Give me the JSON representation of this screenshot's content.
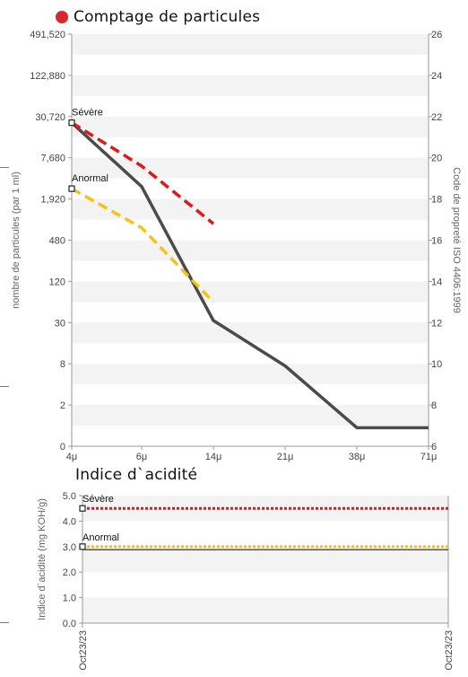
{
  "colors": {
    "band_grey": "#f3f3f3",
    "measured": "#4b4b4b",
    "severe": "#e01818",
    "abnormal": "#f5c21b",
    "dot": "#d9272e"
  },
  "panel1": {
    "title": "Comptage de particules",
    "dot_icon": "red-hexagon-icon"
  },
  "panel2": {
    "title": "Indice d`acidité"
  },
  "chart_data": [
    {
      "type": "line",
      "title": "Comptage de particules",
      "xlabel": "",
      "ylabel": "nombre de particules (par 1 ml)",
      "y2label": "Code de propreté ISO 4406:1999",
      "categories": [
        "4μ",
        "6μ",
        "14μ",
        "21μ",
        "38μ",
        "71μ"
      ],
      "y_ticks": [
        "0",
        "2",
        "8",
        "30",
        "120",
        "480",
        "1,920",
        "7,680",
        "30,720",
        "122,880",
        "491,520"
      ],
      "y2_ticks": [
        "6",
        "8",
        "10",
        "12",
        "14",
        "16",
        "18",
        "20",
        "22",
        "24",
        "26"
      ],
      "y2_range": [
        6,
        26
      ],
      "grid": "alternating horizontal bands",
      "series": [
        {
          "role": "measured",
          "x": [
            "4μ",
            "6μ",
            "14μ",
            "21μ",
            "38μ",
            "71μ"
          ],
          "y2_values": [
            21.7,
            18.6,
            12.1,
            9.9,
            6.9,
            6.9
          ]
        },
        {
          "role": "limit",
          "name": "Sévère",
          "x": [
            "4μ",
            "6μ",
            "14μ"
          ],
          "y2_values": [
            21.7,
            19.6,
            16.8
          ]
        },
        {
          "role": "limit",
          "name": "Anormal",
          "x": [
            "4μ",
            "6μ",
            "14μ"
          ],
          "y2_values": [
            18.5,
            16.6,
            13.0
          ]
        }
      ],
      "markers": [
        {
          "label": "Sévère",
          "y2": 21.7
        },
        {
          "label": "Anormal",
          "y2": 18.5
        }
      ]
    },
    {
      "type": "line",
      "title": "Indice d`acidité",
      "xlabel": "",
      "ylabel": "Indice d`acidité (mg KOH/g)",
      "categories": [
        "Oct23/23",
        "Oct23/23"
      ],
      "y_ticks": [
        "0.0",
        "1.0",
        "2.0",
        "3.0",
        "4.0",
        "5.0"
      ],
      "ylim": [
        0,
        5.0
      ],
      "series": [
        {
          "name": "Sévère",
          "values": [
            4.5,
            4.5
          ]
        },
        {
          "name": "Anormal",
          "values": [
            3.0,
            3.0
          ]
        }
      ],
      "measured": [
        2.95,
        2.95
      ]
    }
  ]
}
